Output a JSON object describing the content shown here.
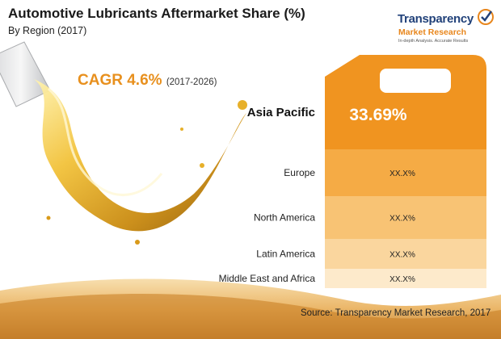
{
  "chart_data": {
    "type": "bar",
    "title": "Automotive Lubricants Aftermarket Share (%)",
    "subtitle": "By Region (2017)",
    "categories": [
      "Asia Pacific",
      "Europe",
      "North America",
      "Latin America",
      "Middle East and Africa"
    ],
    "values": [
      33.69,
      null,
      null,
      null,
      null
    ],
    "value_labels": [
      "33.69%",
      "XX.X%",
      "XX.X%",
      "XX.X%",
      "XX.X%"
    ],
    "annotations": {
      "cagr": "CAGR 4.6%",
      "cagr_period": "(2017-2026)"
    },
    "colors": [
      "#f09420",
      "#f5ab45",
      "#f8c374",
      "#fad69e",
      "#fdeacb"
    ],
    "source": "Source: Transparency Market Research, 2017"
  },
  "brand": {
    "name": "Transparency",
    "sub": "Market Research",
    "tagline": "In-depth Analysis. Accurate Results",
    "primary_color": "#22427a",
    "accent_color": "#e8861c"
  }
}
